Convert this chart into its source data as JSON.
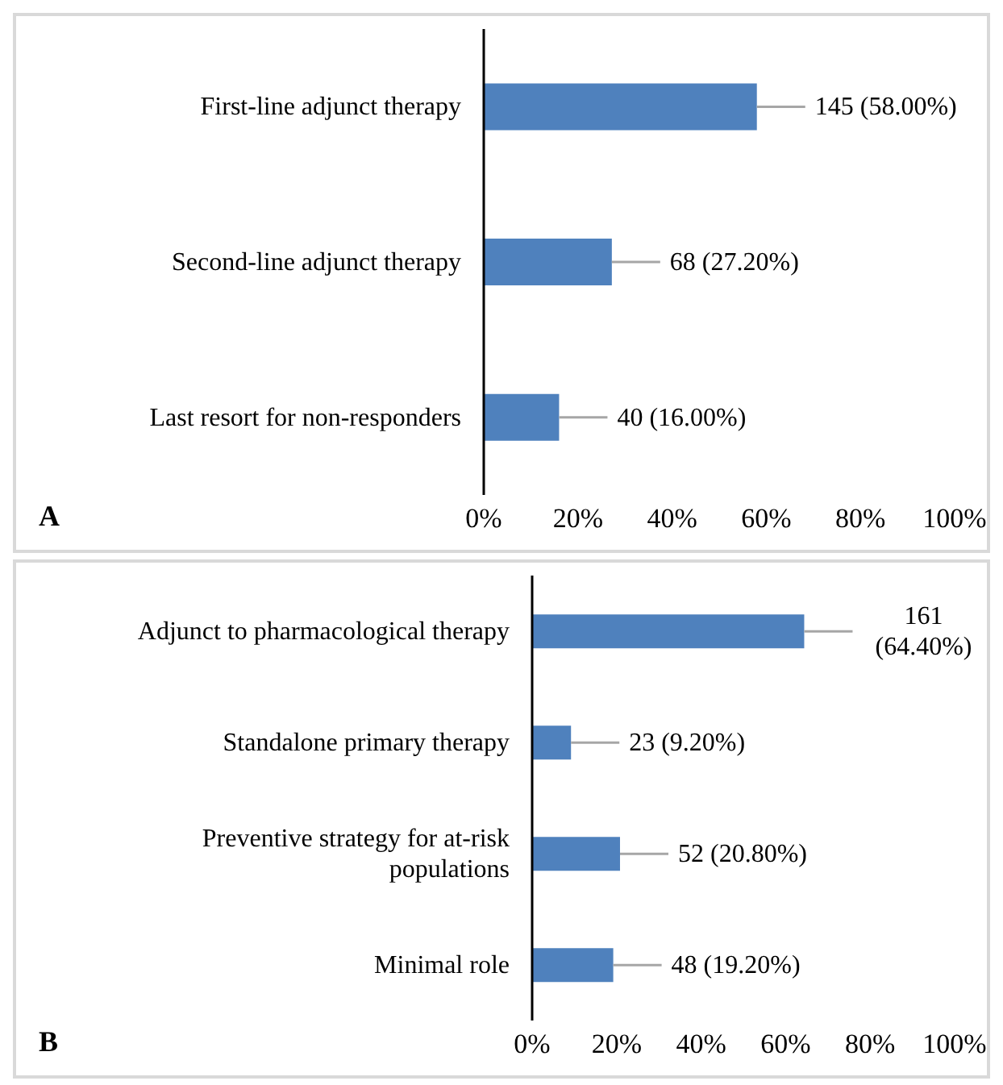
{
  "chart_data": [
    {
      "type": "bar",
      "orientation": "horizontal",
      "categories": [
        "First-line adjunct therapy",
        "Second-line adjunct therapy",
        "Last resort for non-responders"
      ],
      "values": [
        58.0,
        27.2,
        16.0
      ],
      "value_labels": [
        "145 (58.00%)",
        "68 (27.20%)",
        "40 (16.00%)"
      ],
      "color": "#4f81bd",
      "xlim": [
        0,
        100
      ],
      "xticks": [
        {
          "value": 0,
          "label": "0%"
        },
        {
          "value": 20,
          "label": "20%"
        },
        {
          "value": 40,
          "label": "40%"
        },
        {
          "value": 60,
          "label": "60%"
        },
        {
          "value": 80,
          "label": "80%"
        },
        {
          "value": 100,
          "label": "100%"
        }
      ],
      "annotations": [
        "A"
      ]
    },
    {
      "type": "bar",
      "orientation": "horizontal",
      "categories": [
        "Adjunct to pharmacological therapy",
        "Standalone primary therapy",
        "Preventive strategy for at-risk populations",
        "Minimal role"
      ],
      "values": [
        64.4,
        9.2,
        20.8,
        19.2
      ],
      "value_labels": [
        "161 (64.40%)",
        "23 (9.20%)",
        "52 (20.80%)",
        "48 (19.20%)"
      ],
      "color": "#4f81bd",
      "xlim": [
        0,
        100
      ],
      "xticks": [
        {
          "value": 0,
          "label": "0%"
        },
        {
          "value": 20,
          "label": "20%"
        },
        {
          "value": 40,
          "label": "40%"
        },
        {
          "value": 60,
          "label": "60%"
        },
        {
          "value": 80,
          "label": "80%"
        },
        {
          "value": 100,
          "label": "100%"
        }
      ],
      "annotations": [
        "B"
      ]
    }
  ]
}
